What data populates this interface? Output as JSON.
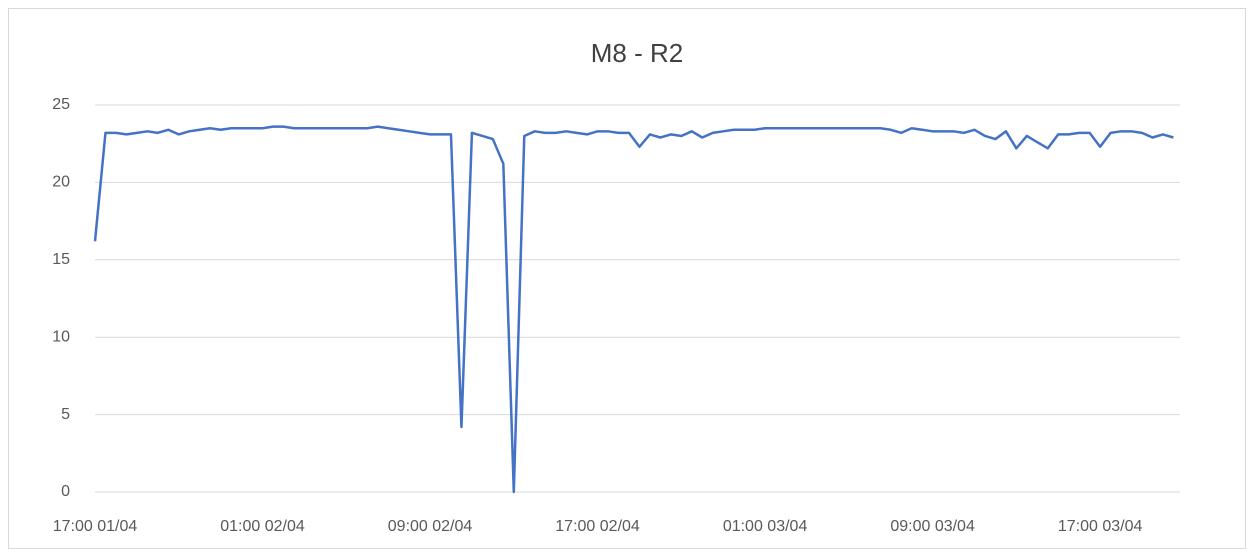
{
  "chart_data": {
    "type": "line",
    "title": "M8 - R2",
    "categories": [
      "17:00 01/04",
      null,
      null,
      null,
      null,
      null,
      null,
      null,
      null,
      null,
      null,
      null,
      null,
      null,
      null,
      null,
      "01:00 02/04",
      null,
      null,
      null,
      null,
      null,
      null,
      null,
      null,
      null,
      null,
      null,
      null,
      null,
      null,
      null,
      "09:00 02/04",
      null,
      null,
      null,
      null,
      null,
      null,
      null,
      null,
      null,
      null,
      null,
      null,
      null,
      null,
      null,
      "17:00 02/04",
      null,
      null,
      null,
      null,
      null,
      null,
      null,
      null,
      null,
      null,
      null,
      null,
      null,
      null,
      null,
      "01:00 03/04",
      null,
      null,
      null,
      null,
      null,
      null,
      null,
      null,
      null,
      null,
      null,
      null,
      null,
      null,
      null,
      "09:00 03/04",
      null,
      null,
      null,
      null,
      null,
      null,
      null,
      null,
      null,
      null,
      null,
      null,
      null,
      null,
      null,
      "17:00 03/04",
      null,
      null,
      null,
      null,
      null,
      null,
      null
    ],
    "series": [
      {
        "name": "M8 - R2",
        "color": "#4472c4",
        "values": [
          16.2,
          23.2,
          23.2,
          23.1,
          23.2,
          23.3,
          23.2,
          23.4,
          23.1,
          23.3,
          23.4,
          23.5,
          23.4,
          23.5,
          23.5,
          23.5,
          23.5,
          23.6,
          23.6,
          23.5,
          23.5,
          23.5,
          23.5,
          23.5,
          23.5,
          23.5,
          23.5,
          23.6,
          23.5,
          23.4,
          23.3,
          23.2,
          23.1,
          23.1,
          23.1,
          4.2,
          23.2,
          23.0,
          22.8,
          21.2,
          0,
          23.0,
          23.3,
          23.2,
          23.2,
          23.3,
          23.2,
          23.1,
          23.3,
          23.3,
          23.2,
          23.2,
          22.3,
          23.1,
          22.9,
          23.1,
          23.0,
          23.3,
          22.9,
          23.2,
          23.3,
          23.4,
          23.4,
          23.4,
          23.5,
          23.5,
          23.5,
          23.5,
          23.5,
          23.5,
          23.5,
          23.5,
          23.5,
          23.5,
          23.5,
          23.5,
          23.4,
          23.2,
          23.5,
          23.4,
          23.3,
          23.3,
          23.3,
          23.2,
          23.4,
          23.0,
          22.8,
          23.3,
          22.2,
          23.0,
          22.6,
          22.2,
          23.1,
          23.1,
          23.2,
          23.2,
          22.3,
          23.2,
          23.3,
          23.3,
          23.2,
          22.9,
          23.1,
          22.9
        ]
      }
    ],
    "ylim": [
      0,
      25
    ],
    "yticks": [
      0,
      5,
      10,
      15,
      20,
      25
    ],
    "grid": true
  }
}
